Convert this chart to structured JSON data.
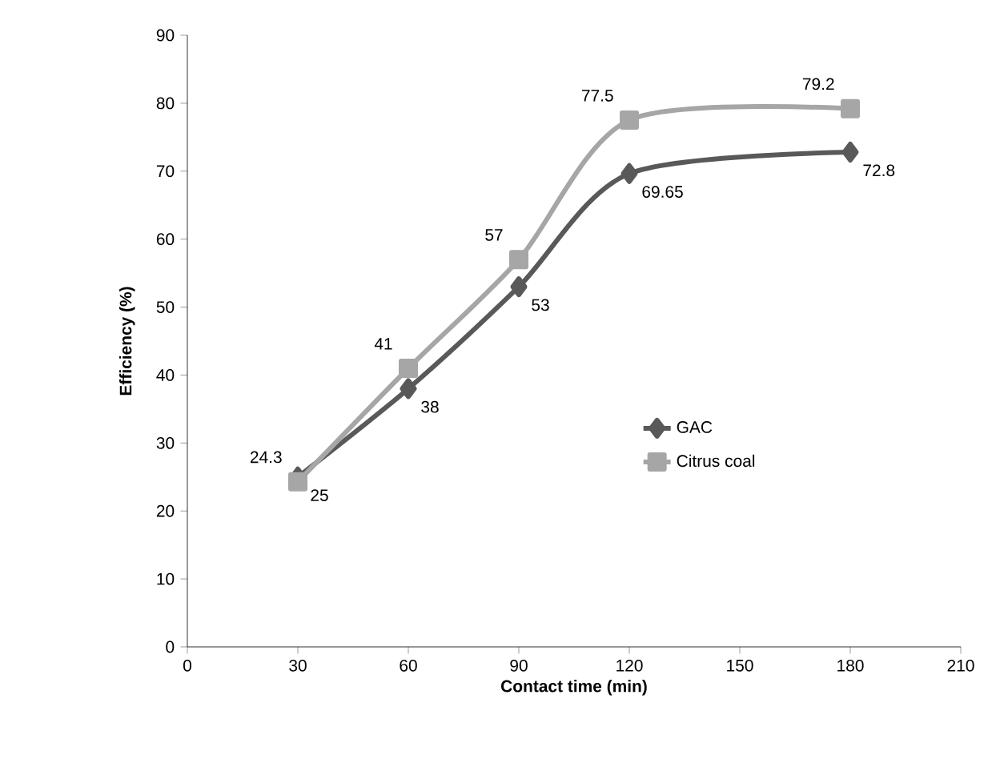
{
  "chart_data": {
    "type": "line",
    "xlabel": "Contact time (min)",
    "ylabel": "Efficiency (%)",
    "x": [
      30,
      60,
      90,
      120,
      180
    ],
    "series": [
      {
        "name": "GAC",
        "color": "#595959",
        "marker": "diamond",
        "values": [
          25,
          38,
          53,
          69.65,
          72.8
        ]
      },
      {
        "name": "Citrus coal",
        "color": "#a6a6a6",
        "marker": "square",
        "values": [
          24.3,
          41,
          57,
          77.5,
          79.2
        ]
      }
    ],
    "xlim": [
      0,
      210
    ],
    "xticks": [
      0,
      30,
      60,
      90,
      120,
      150,
      180,
      210
    ],
    "ylim": [
      0,
      90
    ],
    "yticks": [
      0,
      10,
      20,
      30,
      40,
      50,
      60,
      70,
      80,
      90
    ],
    "grid": false,
    "legend": "right",
    "data_labels": true
  }
}
